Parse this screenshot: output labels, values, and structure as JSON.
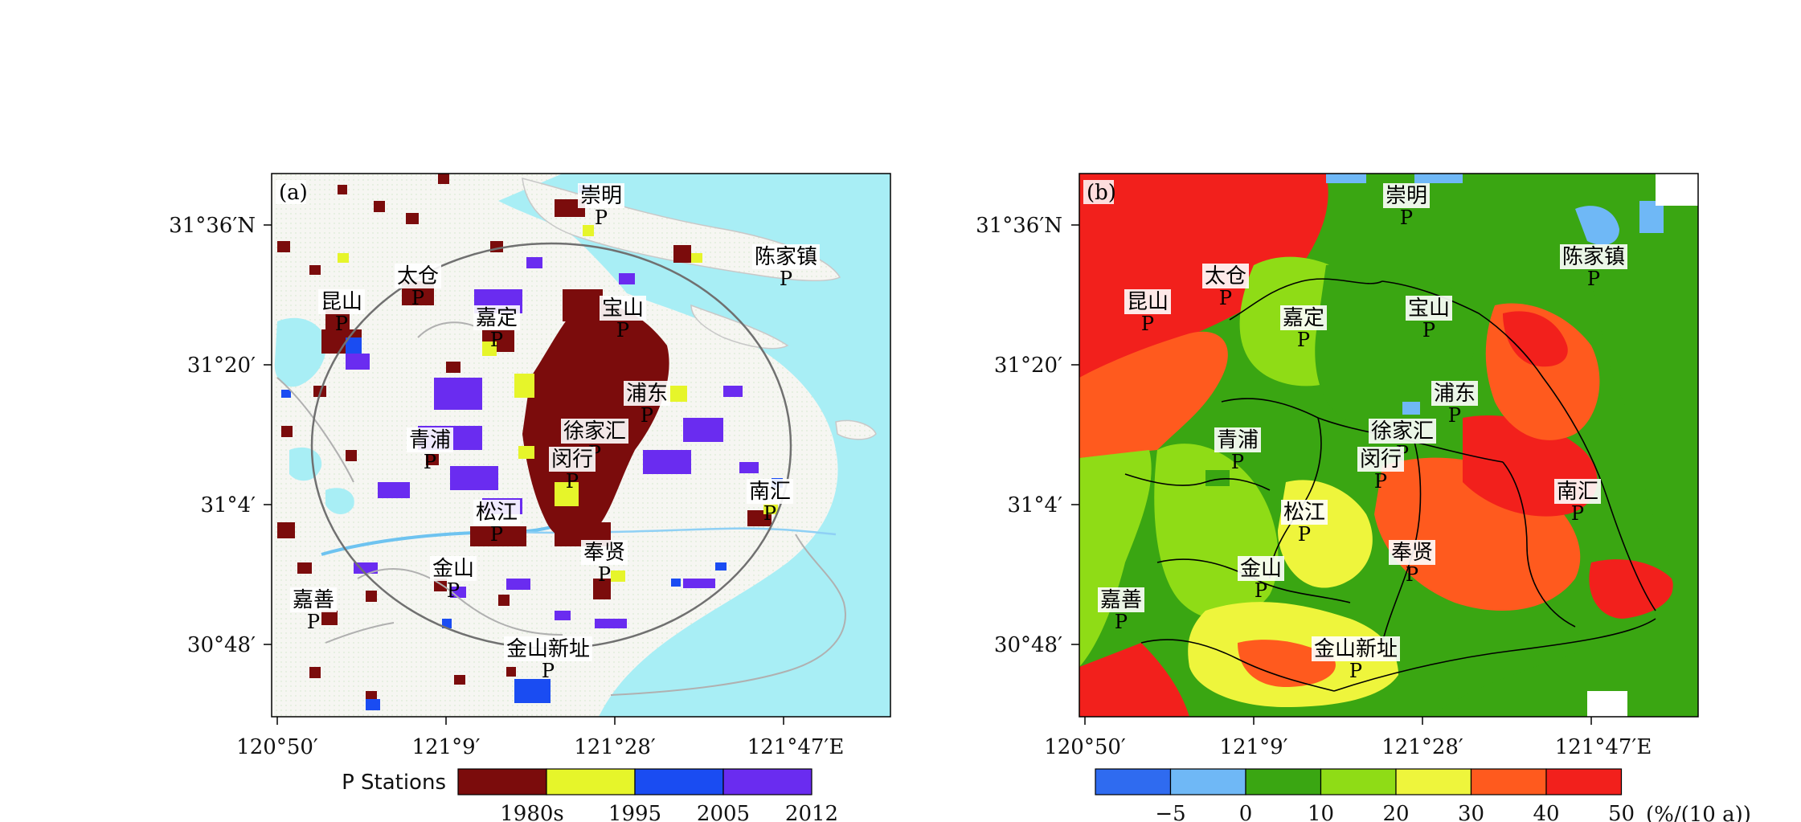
{
  "panel_a": {
    "tag": "(a)",
    "legend_title": "P Stations",
    "legend_items": [
      {
        "label": "1980s",
        "color": "#7b0c0c"
      },
      {
        "label": "1995",
        "color": "#e6f52a"
      },
      {
        "label": "2005",
        "color": "#1a4cf2"
      },
      {
        "label": "2012",
        "color": "#6a2cf0"
      }
    ]
  },
  "panel_b": {
    "tag": "(b)",
    "colorbar_ticks": [
      "−5",
      "0",
      "10",
      "20",
      "30",
      "40",
      "50"
    ],
    "colorbar_unit": "(%/(10 a))",
    "colorbar_colors": [
      "#2f6bf0",
      "#6fb8f6",
      "#3aa612",
      "#8fdc16",
      "#eef53c",
      "#ff5a1e",
      "#f2201c"
    ]
  },
  "axes": {
    "x_ticks": [
      "120°50′",
      "121°9′",
      "121°28′",
      "121°47′E"
    ],
    "y_ticks": [
      "31°36′N",
      "31°20′",
      "31°4′",
      "30°48′"
    ]
  },
  "stations": [
    {
      "name": "崇明",
      "mark": "P"
    },
    {
      "name": "陈家镇",
      "mark": "P"
    },
    {
      "name": "太仓",
      "mark": "P"
    },
    {
      "name": "昆山",
      "mark": "P"
    },
    {
      "name": "嘉定",
      "mark": "P"
    },
    {
      "name": "宝山",
      "mark": "P"
    },
    {
      "name": "浦东",
      "mark": "P"
    },
    {
      "name": "徐家汇",
      "mark": "P"
    },
    {
      "name": "闵行",
      "mark": "P"
    },
    {
      "name": "青浦",
      "mark": "P"
    },
    {
      "name": "南汇",
      "mark": "P"
    },
    {
      "name": "松江",
      "mark": "P"
    },
    {
      "name": "奉贤",
      "mark": "P"
    },
    {
      "name": "金山",
      "mark": "P"
    },
    {
      "name": "嘉善",
      "mark": "P"
    },
    {
      "name": "金山新址",
      "mark": "P"
    }
  ]
}
